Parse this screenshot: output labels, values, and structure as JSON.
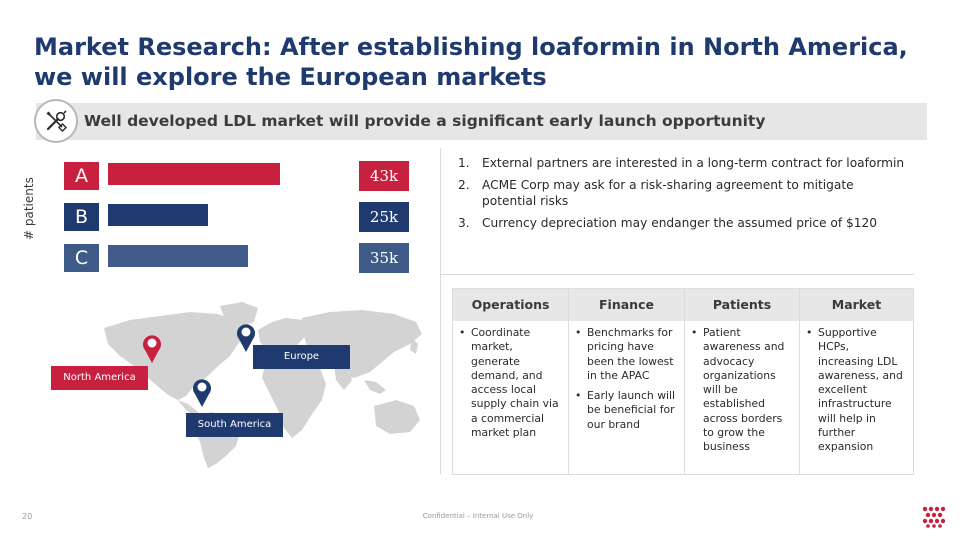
{
  "title": "Market Research: After establishing loaformin in North America, we will explore the European markets",
  "banner": {
    "text": "Well developed LDL market will provide a significant early launch opportunity",
    "icon": "wrench-screwdriver-icon"
  },
  "bars": {
    "axis_label": "# patients",
    "items": [
      {
        "letter": "A",
        "value": "43k",
        "level": 0.43,
        "color": "#c8203f",
        "box_color": "#c8203f"
      },
      {
        "letter": "B",
        "value": "25k",
        "level": 0.25,
        "color": "#1f3a6e",
        "box_color": "#1f3a6e"
      },
      {
        "letter": "C",
        "value": "35k",
        "level": 0.35,
        "color": "#415c8b",
        "box_color": "#3d5a88"
      }
    ]
  },
  "map": {
    "labels": {
      "north_america": "North America",
      "europe": "Europe",
      "south_america": "South America"
    },
    "colors": {
      "red": "#c8203f",
      "navy": "#1f3a6e",
      "land": "#d3d3d3"
    }
  },
  "numbered_list": [
    {
      "n": "1.",
      "text": "External partners are interested in a long-term contract for loaformin"
    },
    {
      "n": "2.",
      "text": "ACME Corp may ask for a risk-sharing agreement to mitigate potential risks"
    },
    {
      "n": "3.",
      "text": "Currency depreciation may endanger the assumed price of $120"
    }
  ],
  "grid": {
    "columns": [
      {
        "header": "Operations",
        "bullets": [
          "Coordinate market, generate demand, and access local supply chain via a commercial market plan"
        ]
      },
      {
        "header": "Finance",
        "bullets": [
          "Benchmarks for pricing have been the lowest in the APAC",
          "Early launch will be beneficial for our brand"
        ]
      },
      {
        "header": "Patients",
        "bullets": [
          "Patient awareness and advocacy organizations will be established across borders to grow the business"
        ]
      },
      {
        "header": "Market",
        "bullets": [
          "Supportive HCPs, increasing LDL awareness, and excellent infrastructure will help in further expansion"
        ]
      }
    ]
  },
  "footer": {
    "page_number": "20",
    "confidentiality": "Confidential – Internal Use Only",
    "logo_icon": "dots-logo-icon"
  }
}
